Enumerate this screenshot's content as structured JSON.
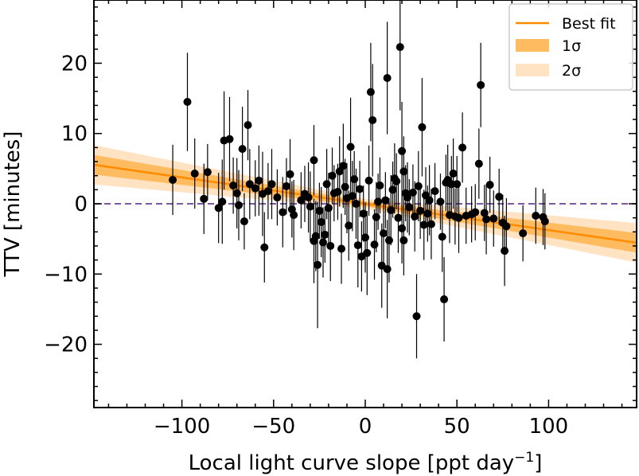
{
  "chart_data": {
    "type": "scatter",
    "title": "",
    "xlabel": "Local light curve slope [ppt day",
    "xlabel_sup": "−1",
    "xlabel_close": "]",
    "ylabel": "TTV [minutes]",
    "xlim": [
      -148,
      148
    ],
    "ylim": [
      -29,
      29
    ],
    "xticks": [
      -100,
      -50,
      0,
      50,
      100
    ],
    "xtick_labels": [
      "−100",
      "−50",
      "0",
      "50",
      "100"
    ],
    "yticks": [
      -20,
      -10,
      0,
      10,
      20
    ],
    "ytick_labels": [
      "−20",
      "−10",
      "0",
      "10",
      "20"
    ],
    "grid": false,
    "legend_position": "top-right",
    "legend": [
      {
        "label": "Best fit",
        "kind": "line",
        "color": "#ff8c00"
      },
      {
        "label": "1σ",
        "kind": "patch",
        "color": "#ffbb60"
      },
      {
        "label": "2σ",
        "kind": "patch",
        "color": "#ffe3c2"
      }
    ],
    "fit": {
      "slope": -0.0375,
      "intercept": 0.0,
      "sigma1_halfwidth_at_edge": 1.4,
      "sigma2_halfwidth_at_edge": 2.8
    },
    "zero_line": {
      "y": 0,
      "color": "#7b59a6",
      "style": "dashed"
    },
    "series": [
      {
        "marker_color": "#000000",
        "points": [
          {
            "x": -105,
            "y": 3.4,
            "err": 5
          },
          {
            "x": -97,
            "y": 14.5,
            "err": 7
          },
          {
            "x": -93,
            "y": 4.3,
            "err": 5
          },
          {
            "x": -88,
            "y": 0.7,
            "err": 5
          },
          {
            "x": -86,
            "y": 4.5,
            "err": 4
          },
          {
            "x": -80,
            "y": -0.6,
            "err": 5
          },
          {
            "x": -78,
            "y": 0.3,
            "err": 6
          },
          {
            "x": -77,
            "y": 9.0,
            "err": 7
          },
          {
            "x": -74,
            "y": 9.2,
            "err": 6
          },
          {
            "x": -72,
            "y": 2.6,
            "err": 4
          },
          {
            "x": -70,
            "y": 1.5,
            "err": 5
          },
          {
            "x": -69,
            "y": -0.2,
            "err": 5
          },
          {
            "x": -67,
            "y": 7.8,
            "err": 6
          },
          {
            "x": -66,
            "y": -2.5,
            "err": 4
          },
          {
            "x": -64,
            "y": 11.2,
            "err": 5
          },
          {
            "x": -63,
            "y": 2.8,
            "err": 5
          },
          {
            "x": -60,
            "y": 2.2,
            "err": 4
          },
          {
            "x": -58,
            "y": 3.3,
            "err": 5
          },
          {
            "x": -56,
            "y": 1.4,
            "err": 6
          },
          {
            "x": -55,
            "y": -6.2,
            "err": 5
          },
          {
            "x": -53,
            "y": 1.8,
            "err": 4
          },
          {
            "x": -51,
            "y": 2.8,
            "err": 5
          },
          {
            "x": -48,
            "y": 0.9,
            "err": 4
          },
          {
            "x": -45,
            "y": -1.2,
            "err": 5
          },
          {
            "x": -43,
            "y": 2.5,
            "err": 4
          },
          {
            "x": -41,
            "y": 4.2,
            "err": 5
          },
          {
            "x": -40,
            "y": -0.8,
            "err": 4
          },
          {
            "x": -39,
            "y": -1.6,
            "err": 5
          },
          {
            "x": -35,
            "y": 0.5,
            "err": 4
          },
          {
            "x": -33,
            "y": 1.4,
            "err": 4
          },
          {
            "x": -31,
            "y": 0.9,
            "err": 5
          },
          {
            "x": -30,
            "y": -0.4,
            "err": 5
          },
          {
            "x": -28,
            "y": 6.2,
            "err": 5
          },
          {
            "x": -28,
            "y": -5.3,
            "err": 6
          },
          {
            "x": -27,
            "y": -4.6,
            "err": 5
          },
          {
            "x": -26,
            "y": -8.7,
            "err": 9
          },
          {
            "x": -25,
            "y": -1.0,
            "err": 4
          },
          {
            "x": -24,
            "y": -2.6,
            "err": 5
          },
          {
            "x": -23,
            "y": -5.5,
            "err": 5
          },
          {
            "x": -22,
            "y": -4.4,
            "err": 4
          },
          {
            "x": -21,
            "y": 2.8,
            "err": 5
          },
          {
            "x": -20,
            "y": -0.6,
            "err": 5
          },
          {
            "x": -19,
            "y": -6.0,
            "err": 5
          },
          {
            "x": -18,
            "y": 4.0,
            "err": 4
          },
          {
            "x": -17,
            "y": 1.5,
            "err": 4
          },
          {
            "x": -15,
            "y": 1.7,
            "err": 4
          },
          {
            "x": -14,
            "y": 4.6,
            "err": 5
          },
          {
            "x": -13,
            "y": -6.4,
            "err": 5
          },
          {
            "x": -12,
            "y": 5.4,
            "err": 6
          },
          {
            "x": -11,
            "y": 2.4,
            "err": 4
          },
          {
            "x": -10,
            "y": 0.8,
            "err": 5
          },
          {
            "x": -9,
            "y": -3.1,
            "err": 5
          },
          {
            "x": -8,
            "y": 8.1,
            "err": 7
          },
          {
            "x": -7,
            "y": 1.1,
            "err": 5
          },
          {
            "x": -6,
            "y": 3.5,
            "err": 4
          },
          {
            "x": -5,
            "y": 0.0,
            "err": 5
          },
          {
            "x": -4,
            "y": -5.9,
            "err": 6
          },
          {
            "x": -3,
            "y": 2.1,
            "err": 4
          },
          {
            "x": -2,
            "y": -7.5,
            "err": 5
          },
          {
            "x": -1,
            "y": -1.4,
            "err": 4
          },
          {
            "x": 0,
            "y": -4.8,
            "err": 5
          },
          {
            "x": 1,
            "y": -7.0,
            "err": 6
          },
          {
            "x": 2,
            "y": 3.3,
            "err": 5
          },
          {
            "x": 3,
            "y": 15.9,
            "err": 7
          },
          {
            "x": 4,
            "y": 11.9,
            "err": 8
          },
          {
            "x": 5,
            "y": -5.8,
            "err": 5
          },
          {
            "x": 6,
            "y": -1.9,
            "err": 5
          },
          {
            "x": 7,
            "y": 0.3,
            "err": 4
          },
          {
            "x": 8,
            "y": 2.6,
            "err": 4
          },
          {
            "x": 9,
            "y": -8.8,
            "err": 6
          },
          {
            "x": 10,
            "y": -4.2,
            "err": 5
          },
          {
            "x": 11,
            "y": 0.5,
            "err": 4
          },
          {
            "x": 12,
            "y": -9.3,
            "err": 7
          },
          {
            "x": 12,
            "y": 17.9,
            "err": 8
          },
          {
            "x": 13,
            "y": -5.2,
            "err": 6
          },
          {
            "x": 14,
            "y": -0.9,
            "err": 5
          },
          {
            "x": 15,
            "y": 2.0,
            "err": 4
          },
          {
            "x": 16,
            "y": 3.6,
            "err": 5
          },
          {
            "x": 17,
            "y": 3.2,
            "err": 4
          },
          {
            "x": 18,
            "y": -2.0,
            "err": 5
          },
          {
            "x": 19,
            "y": 22.3,
            "err": 9
          },
          {
            "x": 20,
            "y": 7.5,
            "err": 7
          },
          {
            "x": 20,
            "y": -3.5,
            "err": 5
          },
          {
            "x": 21,
            "y": 4.6,
            "err": 5
          },
          {
            "x": 21,
            "y": -5.2,
            "err": 5
          },
          {
            "x": 22,
            "y": 1.5,
            "err": 4
          },
          {
            "x": 23,
            "y": 0.9,
            "err": 5
          },
          {
            "x": 24,
            "y": -0.5,
            "err": 4
          },
          {
            "x": 26,
            "y": 1.6,
            "err": 4
          },
          {
            "x": 27,
            "y": -1.8,
            "err": 5
          },
          {
            "x": 28,
            "y": -16.0,
            "err": 6
          },
          {
            "x": 29,
            "y": 2.5,
            "err": 5
          },
          {
            "x": 30,
            "y": -1.0,
            "err": 4
          },
          {
            "x": 31,
            "y": 10.9,
            "err": 7
          },
          {
            "x": 32,
            "y": -3.0,
            "err": 5
          },
          {
            "x": 33,
            "y": 1.2,
            "err": 4
          },
          {
            "x": 34,
            "y": -1.4,
            "err": 4
          },
          {
            "x": 35,
            "y": 0.5,
            "err": 5
          },
          {
            "x": 36,
            "y": -2.9,
            "err": 5
          },
          {
            "x": 38,
            "y": 1.8,
            "err": 4
          },
          {
            "x": 41,
            "y": 0.3,
            "err": 4
          },
          {
            "x": 42,
            "y": -4.7,
            "err": 5
          },
          {
            "x": 43,
            "y": -13.6,
            "err": 6
          },
          {
            "x": 44,
            "y": 3.0,
            "err": 4
          },
          {
            "x": 45,
            "y": 3.4,
            "err": 5
          },
          {
            "x": 46,
            "y": -1.6,
            "err": 4
          },
          {
            "x": 47,
            "y": 2.8,
            "err": 4
          },
          {
            "x": 48,
            "y": 4.3,
            "err": 5
          },
          {
            "x": 49,
            "y": -1.8,
            "err": 4
          },
          {
            "x": 50,
            "y": 2.8,
            "err": 4
          },
          {
            "x": 51,
            "y": -2.0,
            "err": 5
          },
          {
            "x": 53,
            "y": 8.0,
            "err": 5
          },
          {
            "x": 55,
            "y": -1.7,
            "err": 4
          },
          {
            "x": 58,
            "y": -1.5,
            "err": 4
          },
          {
            "x": 60,
            "y": -1.2,
            "err": 4
          },
          {
            "x": 62,
            "y": 5.7,
            "err": 5
          },
          {
            "x": 63,
            "y": 16.9,
            "err": 6
          },
          {
            "x": 65,
            "y": -1.3,
            "err": 4
          },
          {
            "x": 66,
            "y": -2.2,
            "err": 5
          },
          {
            "x": 68,
            "y": 2.7,
            "err": 4
          },
          {
            "x": 70,
            "y": -2.1,
            "err": 4
          },
          {
            "x": 73,
            "y": 1.0,
            "err": 4
          },
          {
            "x": 75,
            "y": -2.7,
            "err": 4
          },
          {
            "x": 76,
            "y": -6.7,
            "err": 5
          },
          {
            "x": 77,
            "y": -3.2,
            "err": 4
          },
          {
            "x": 86,
            "y": -4.2,
            "err": 4
          },
          {
            "x": 93,
            "y": -1.7,
            "err": 4
          },
          {
            "x": 97,
            "y": -1.9,
            "err": 4
          },
          {
            "x": 98,
            "y": -2.5,
            "err": 4
          }
        ]
      }
    ]
  }
}
